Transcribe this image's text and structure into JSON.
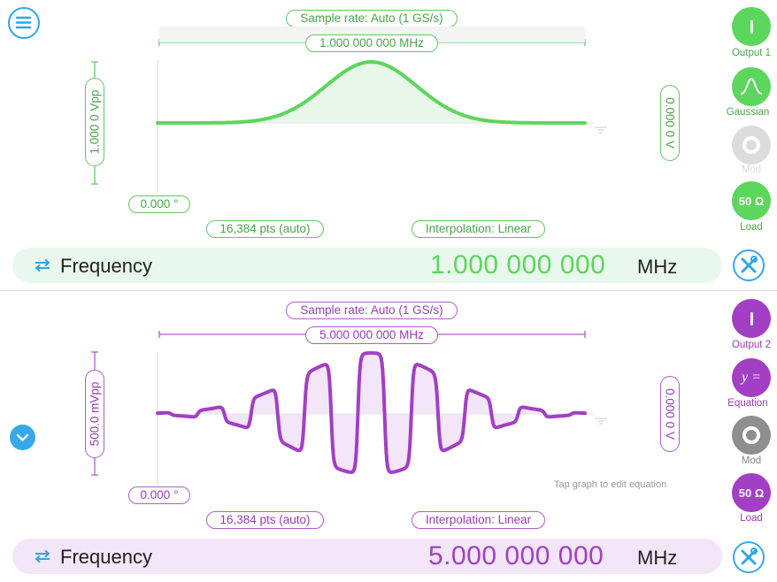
{
  "channel1": {
    "sample_rate": "Sample rate: Auto (1 GS/s)",
    "period_freq": "1.000 000 000 MHz",
    "amplitude": "1.000 0 Vpp",
    "offset": "0.000 0 V",
    "phase": "0.000 °",
    "points": "16,384 pts (auto)",
    "interpolation": "Interpolation: Linear",
    "freq_label": "Frequency",
    "freq_value": "1.000 000 000",
    "freq_unit": "MHz",
    "output_label": "Output 1",
    "waveform_label": "Gaussian",
    "mod_label": "Mod",
    "load_label": "Load",
    "load_value": "50 Ω",
    "color": "#5cd65c",
    "bar_color": "#e9f8ec"
  },
  "channel2": {
    "sample_rate": "Sample rate: Auto (1 GS/s)",
    "period_freq": "5.000 000 000 MHz",
    "amplitude": "500.0 mVpp",
    "offset": "0.000 0 V",
    "phase": "0.000 °",
    "points": "16,384 pts (auto)",
    "interpolation": "Interpolation: Linear",
    "hint": "Tap graph to edit equation",
    "freq_label": "Frequency",
    "freq_value": "5.000 000 000",
    "freq_unit": "MHz",
    "output_label": "Output 2",
    "waveform_label": "Equation",
    "waveform_symbol": "y =",
    "mod_label": "Mod",
    "load_label": "Load",
    "load_value": "50 Ω",
    "color": "#a23fc4",
    "bar_color": "#f3e6f8"
  },
  "icons": {
    "menu": "menu-icon",
    "collapse": "chevron-down-icon",
    "swap": "swap-arrows-icon",
    "settings": "wrench-screwdriver-icon"
  }
}
